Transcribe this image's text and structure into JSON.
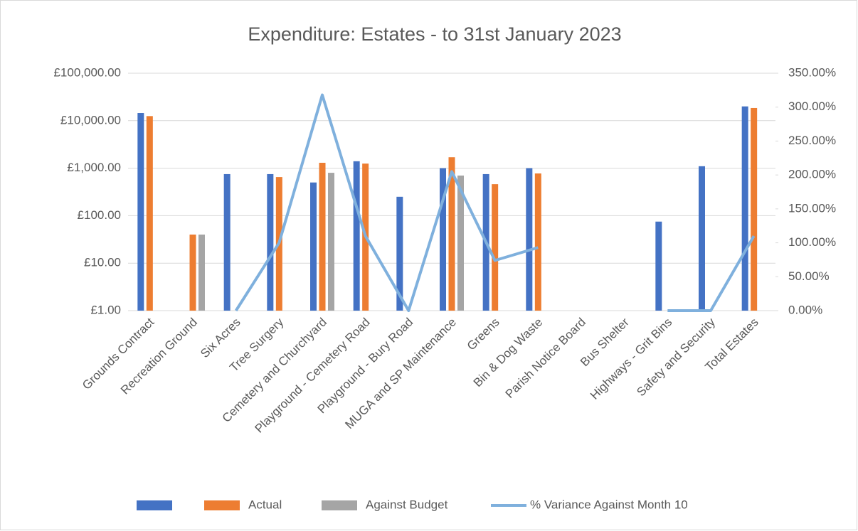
{
  "chart_data": {
    "type": "bar",
    "title": "Expenditure: Estates - to 31st January 2023",
    "categories": [
      "Grounds Contract",
      "Recreation Ground",
      "Six Acres",
      "Tree Surgery",
      "Cemetery and Churchyard",
      "Playground - Cemetery Road",
      "Playground - Bury Road",
      "MUGA and SP Maintenance",
      "Greens",
      "Bin & Dog Waste",
      "Parish Notice Board",
      "Bus Shelter",
      "Highways - Grit Bins",
      "Safety and Security",
      "Total Estates"
    ],
    "yscale": "log",
    "ylim": [
      1,
      100000
    ],
    "yticks": [
      {
        "value": 1,
        "label": "£1.00"
      },
      {
        "value": 10,
        "label": "£10.00"
      },
      {
        "value": 100,
        "label": "£100.00"
      },
      {
        "value": 1000,
        "label": "£1,000.00"
      },
      {
        "value": 10000,
        "label": "£10,000.00"
      },
      {
        "value": 100000,
        "label": "£100,000.00"
      }
    ],
    "y2lim": [
      0,
      350
    ],
    "y2ticks": [
      {
        "value": 0,
        "label": "0.00%"
      },
      {
        "value": 50,
        "label": "50.00%"
      },
      {
        "value": 100,
        "label": "100.00%"
      },
      {
        "value": 150,
        "label": "150.00%"
      },
      {
        "value": 200,
        "label": "200.00%"
      },
      {
        "value": 250,
        "label": "250.00%"
      },
      {
        "value": 300,
        "label": "300.00%"
      },
      {
        "value": 350,
        "label": "350.00%"
      }
    ],
    "grid": true,
    "legend": "bottom",
    "series": [
      {
        "color": "#4472c4",
        "values": [
          14500,
          null,
          750,
          750,
          500,
          1400,
          250,
          1000,
          750,
          1000,
          null,
          null,
          75,
          1100,
          20000
        ]
      },
      {
        "name": "Actual",
        "color": "#ed7d31",
        "values": [
          12500,
          40,
          null,
          650,
          1300,
          1250,
          null,
          1700,
          460,
          775,
          null,
          null,
          null,
          null,
          18500
        ]
      },
      {
        "name": "Against Budget",
        "color": "#a5a5a5",
        "values": [
          null,
          40,
          null,
          null,
          800,
          null,
          null,
          700,
          null,
          null,
          null,
          null,
          null,
          null,
          null
        ]
      },
      {
        "name": "% Variance Against Month 10",
        "type": "line",
        "axis": "y2",
        "color": "#7fb0dd",
        "values": [
          null,
          null,
          0,
          100,
          318,
          110,
          0,
          205,
          74,
          93,
          null,
          null,
          0,
          0,
          110
        ]
      }
    ]
  }
}
